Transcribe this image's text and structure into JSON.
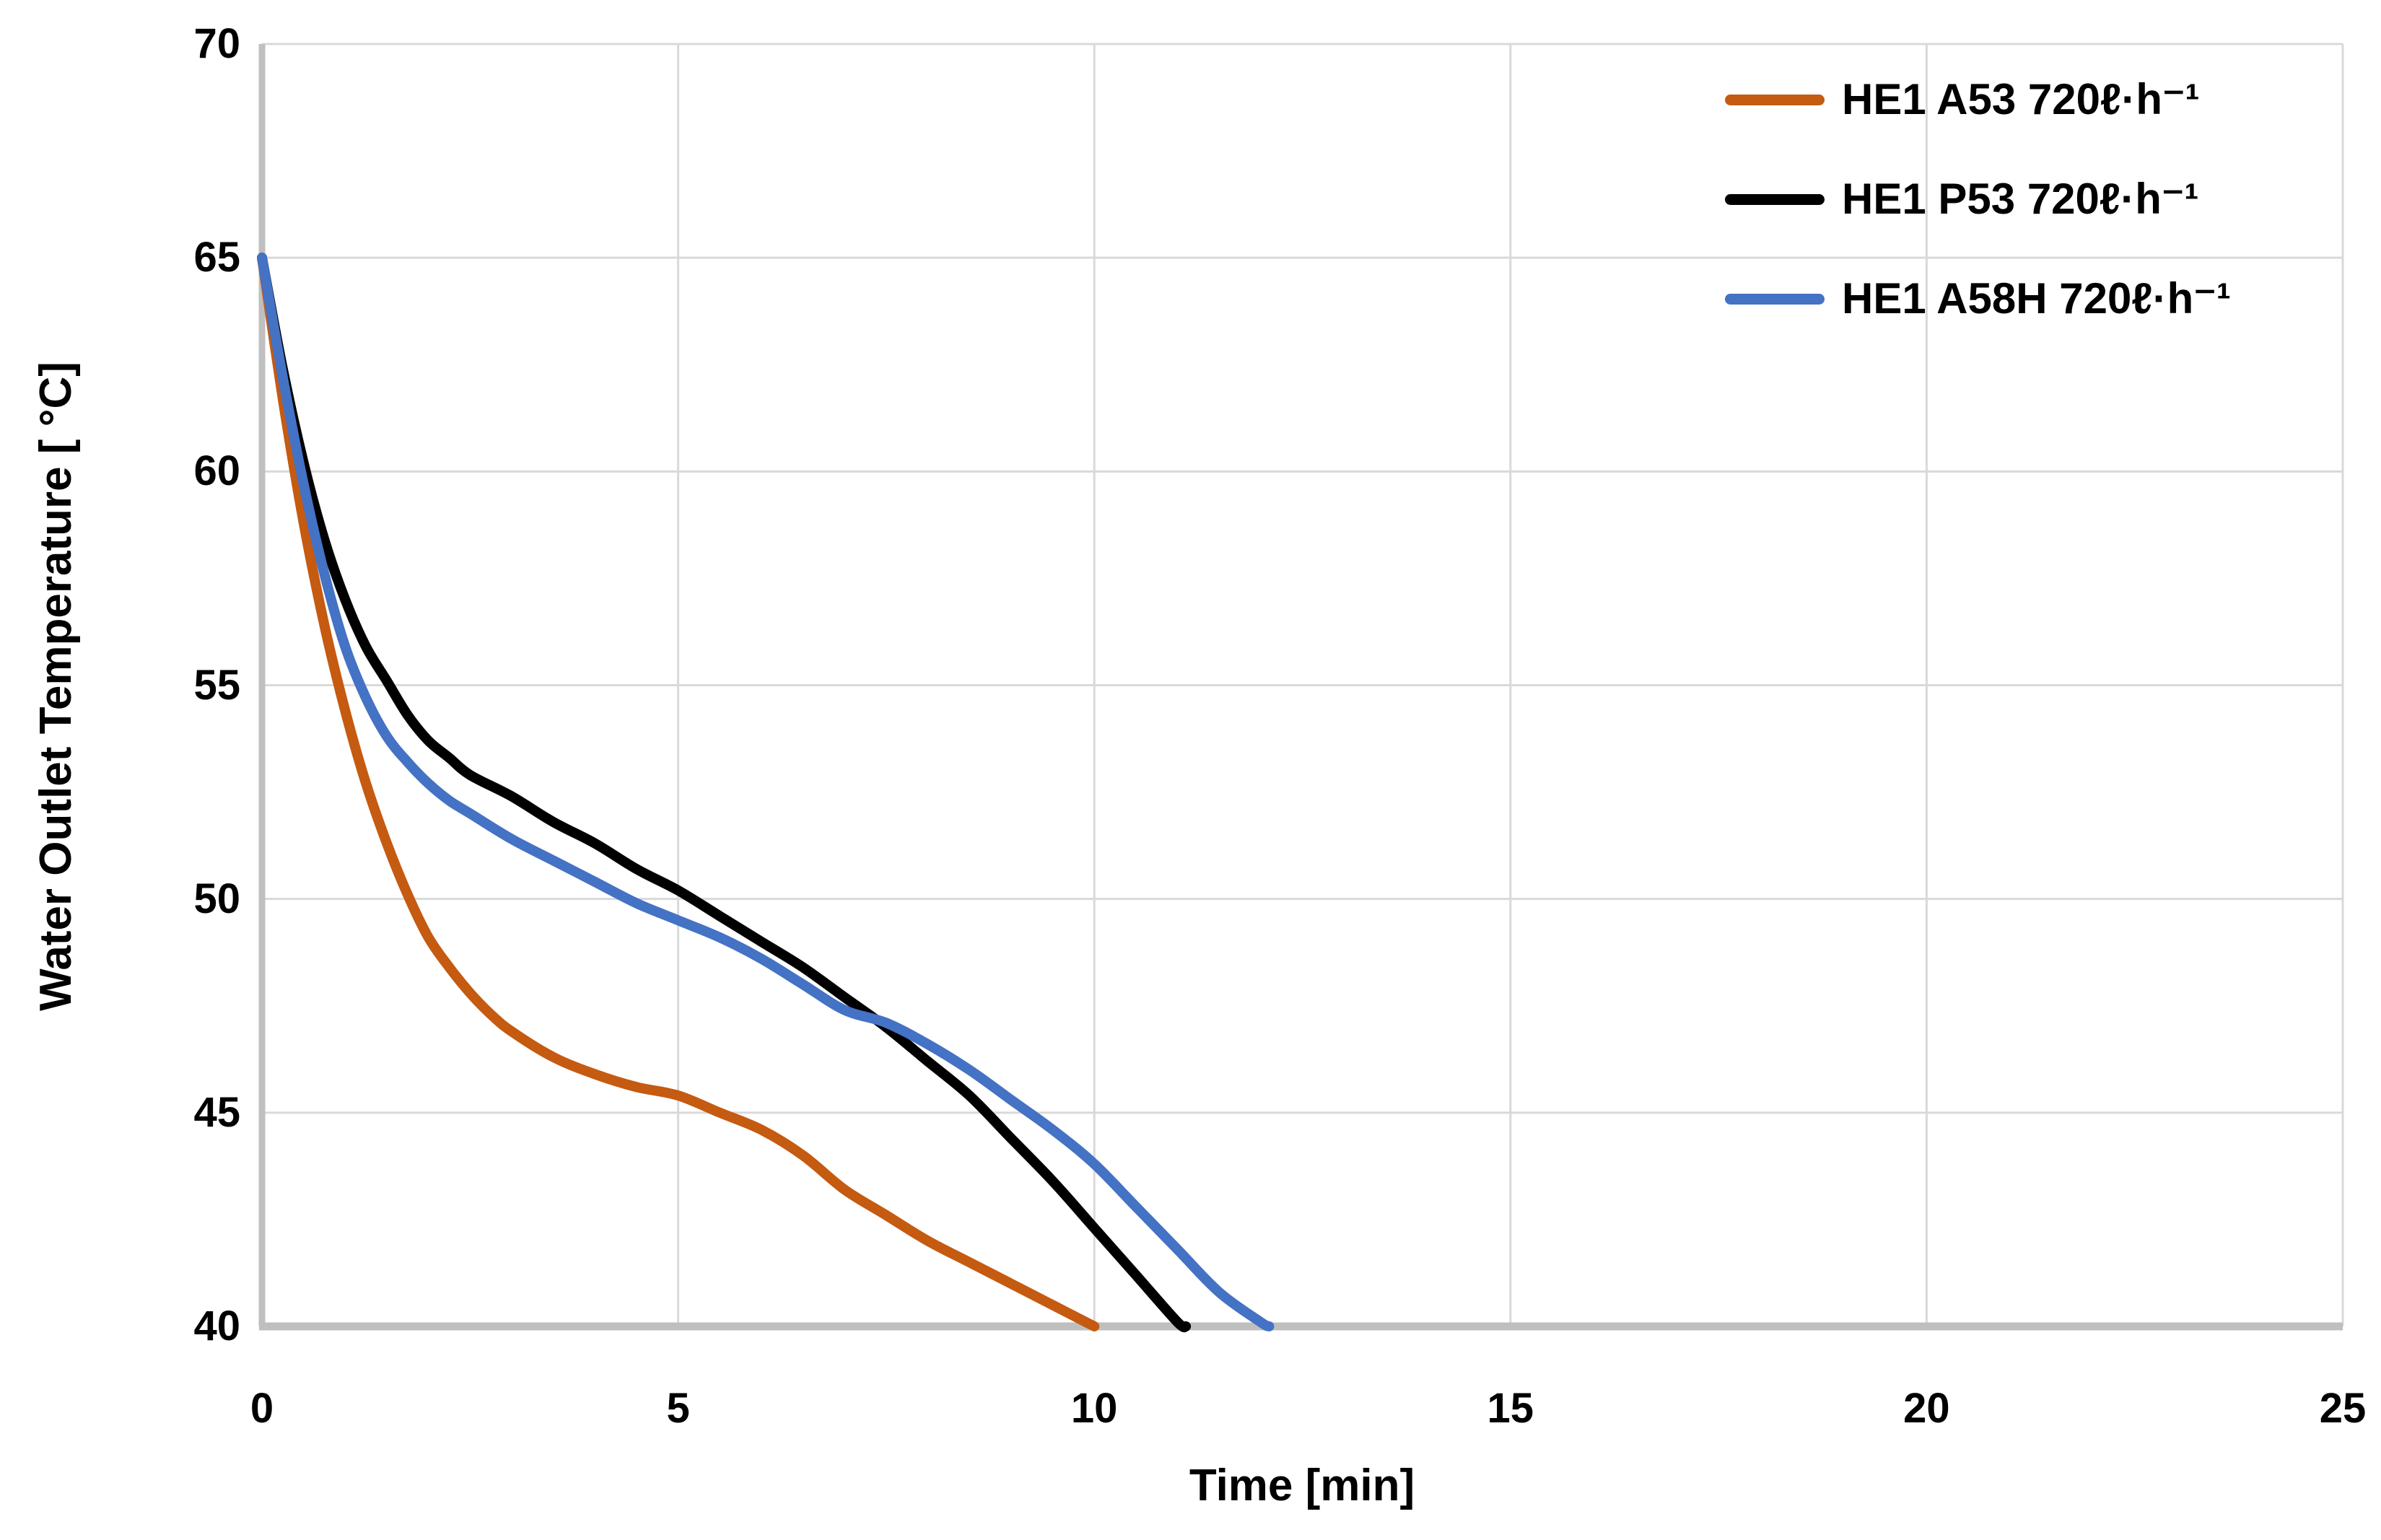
{
  "chart_data": {
    "type": "line",
    "title": "",
    "xlabel": "Time [min]",
    "ylabel": "Water Outlet Temperature [ °C]",
    "xlim": [
      0,
      25
    ],
    "ylim": [
      40,
      70
    ],
    "x_ticks": [
      0,
      5,
      10,
      15,
      20,
      25
    ],
    "y_ticks": [
      70,
      65,
      60,
      55,
      50,
      45,
      40
    ],
    "grid": true,
    "legend_position": "top-right",
    "colors": {
      "gridline": "#d9d9d9",
      "axis_line": "#bfbfbf",
      "background": "#ffffff",
      "text": "#000000"
    },
    "series": [
      {
        "name": "HE1 A53 720ℓ·h⁻¹",
        "color": "#c55a11",
        "points": [
          [
            0,
            65
          ],
          [
            0.25,
            61.7
          ],
          [
            0.5,
            58.8
          ],
          [
            0.75,
            56.4
          ],
          [
            1,
            54.4
          ],
          [
            1.25,
            52.7
          ],
          [
            1.5,
            51.3
          ],
          [
            1.75,
            50.1
          ],
          [
            2,
            49.1
          ],
          [
            2.25,
            48.4
          ],
          [
            2.5,
            47.8
          ],
          [
            2.75,
            47.3
          ],
          [
            3,
            46.9
          ],
          [
            3.5,
            46.3
          ],
          [
            4,
            45.9
          ],
          [
            4.5,
            45.6
          ],
          [
            5,
            45.4
          ],
          [
            5.5,
            45.0
          ],
          [
            6,
            44.6
          ],
          [
            6.5,
            44.0
          ],
          [
            7,
            43.2
          ],
          [
            7.5,
            42.6
          ],
          [
            8,
            42.0
          ],
          [
            8.5,
            41.5
          ],
          [
            9,
            41.0
          ],
          [
            9.5,
            40.5
          ],
          [
            10,
            40.0
          ]
        ]
      },
      {
        "name": "HE1 P53 720ℓ·h⁻¹",
        "color": "#000000",
        "points": [
          [
            0,
            65
          ],
          [
            0.25,
            62.4
          ],
          [
            0.5,
            60.2
          ],
          [
            0.75,
            58.4
          ],
          [
            1,
            57.0
          ],
          [
            1.25,
            55.9
          ],
          [
            1.5,
            55.1
          ],
          [
            1.75,
            54.3
          ],
          [
            2,
            53.7
          ],
          [
            2.25,
            53.3
          ],
          [
            2.5,
            52.9
          ],
          [
            3,
            52.4
          ],
          [
            3.5,
            51.8
          ],
          [
            4,
            51.3
          ],
          [
            4.5,
            50.7
          ],
          [
            5,
            50.2
          ],
          [
            5.5,
            49.6
          ],
          [
            6,
            49.0
          ],
          [
            6.5,
            48.4
          ],
          [
            7,
            47.7
          ],
          [
            7.5,
            47.0
          ],
          [
            8,
            46.2
          ],
          [
            8.5,
            45.4
          ],
          [
            9,
            44.4
          ],
          [
            9.5,
            43.4
          ],
          [
            10,
            42.3
          ],
          [
            10.5,
            41.2
          ],
          [
            11,
            40.1
          ],
          [
            11.1,
            40.0
          ]
        ]
      },
      {
        "name": "HE1 A58H 720ℓ·h⁻¹",
        "color": "#4472c4",
        "points": [
          [
            0,
            65
          ],
          [
            0.25,
            62.2
          ],
          [
            0.5,
            59.7
          ],
          [
            0.75,
            57.6
          ],
          [
            1,
            55.9
          ],
          [
            1.25,
            54.7
          ],
          [
            1.5,
            53.8
          ],
          [
            1.75,
            53.2
          ],
          [
            2,
            52.7
          ],
          [
            2.25,
            52.3
          ],
          [
            2.5,
            52.0
          ],
          [
            3,
            51.4
          ],
          [
            3.5,
            50.9
          ],
          [
            4,
            50.4
          ],
          [
            4.5,
            49.9
          ],
          [
            5,
            49.5
          ],
          [
            5.5,
            49.1
          ],
          [
            6,
            48.6
          ],
          [
            6.5,
            48.0
          ],
          [
            7,
            47.4
          ],
          [
            7.5,
            47.1
          ],
          [
            8,
            46.6
          ],
          [
            8.5,
            46.0
          ],
          [
            9,
            45.3
          ],
          [
            9.5,
            44.6
          ],
          [
            10,
            43.8
          ],
          [
            10.5,
            42.8
          ],
          [
            11,
            41.8
          ],
          [
            11.5,
            40.8
          ],
          [
            12,
            40.1
          ],
          [
            12.1,
            40.0
          ]
        ]
      }
    ]
  }
}
